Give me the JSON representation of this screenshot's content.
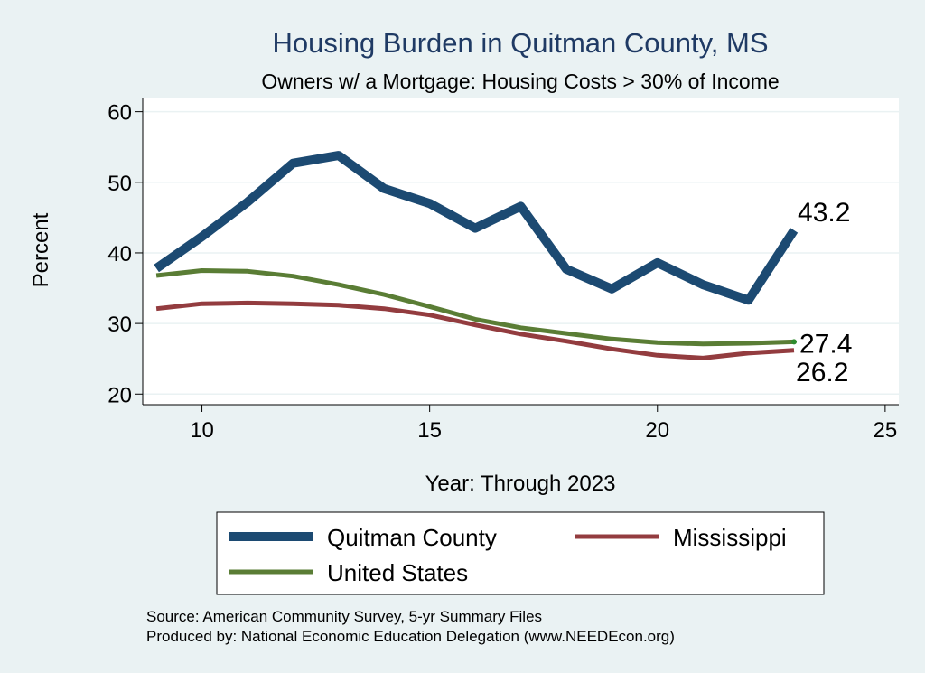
{
  "chart_data": {
    "type": "line",
    "title": "Housing Burden in Quitman County, MS",
    "subtitle": "Owners w/ a Mortgage: Housing Costs > 30% of Income",
    "xlabel": "Year: Through 2023",
    "ylabel": "Percent",
    "xlim": [
      8.7,
      25.3
    ],
    "ylim": [
      18.5,
      62
    ],
    "xticks": [
      10,
      15,
      20,
      25
    ],
    "yticks": [
      20,
      30,
      40,
      50,
      60
    ],
    "grid": true,
    "x": [
      9,
      10,
      11,
      12,
      13,
      14,
      15,
      16,
      17,
      18,
      19,
      20,
      21,
      22,
      23
    ],
    "series": [
      {
        "name": "Quitman County",
        "color": "#1c4a72",
        "values": [
          37.8,
          42.3,
          47.2,
          52.7,
          53.8,
          49.1,
          47.0,
          43.5,
          46.6,
          37.7,
          34.9,
          38.6,
          35.5,
          33.3,
          43.2
        ],
        "end_label": "43.2"
      },
      {
        "name": "Mississippi",
        "color": "#933c3f",
        "values": [
          32.1,
          32.8,
          32.9,
          32.8,
          32.6,
          32.1,
          31.2,
          29.8,
          28.5,
          27.5,
          26.4,
          25.5,
          25.1,
          25.8,
          26.2
        ],
        "end_label": "26.2"
      },
      {
        "name": "United States",
        "color": "#5a7d35",
        "values": [
          36.8,
          37.5,
          37.4,
          36.7,
          35.5,
          34.1,
          32.4,
          30.6,
          29.4,
          28.6,
          27.8,
          27.3,
          27.1,
          27.2,
          27.4
        ],
        "end_label": "27.4"
      }
    ],
    "legend": {
      "position": "bottom",
      "entries": [
        "Quitman County",
        "Mississippi",
        "United States"
      ]
    }
  },
  "notes": {
    "source": "Source: American Community Survey, 5-yr Summary Files",
    "produced": "Produced by: National Economic Education Delegation (www.NEEDEcon.org)"
  }
}
